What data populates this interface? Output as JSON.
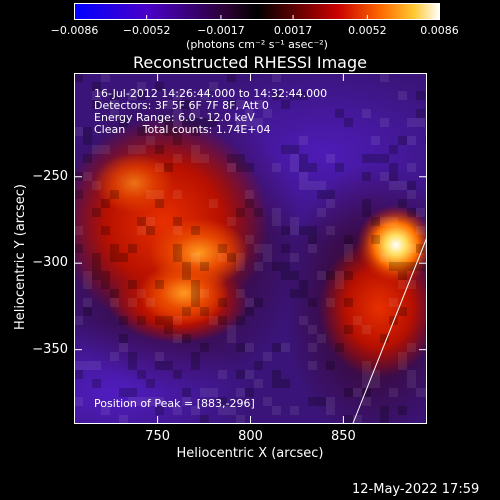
{
  "colorbar": {
    "ticks": [
      "−0.0086",
      "−0.0052",
      "−0.0017",
      "0.0017",
      "0.0052",
      "0.0086"
    ],
    "tick_values": [
      -0.0086,
      -0.0052,
      -0.0017,
      0.0017,
      0.0052,
      0.0086
    ],
    "unit_label": "(photons cm⁻² s⁻¹ asec⁻²)",
    "colors": [
      "#0000ff",
      "#4a00c8",
      "#2a0030",
      "#000000",
      "#5a0000",
      "#c80000",
      "#ff6a00",
      "#ffc832",
      "#ffffff"
    ]
  },
  "chart_data": {
    "type": "heatmap",
    "title": "Reconstructed RHESSI Image",
    "xlabel": "Heliocentric X (arcsec)",
    "ylabel": "Heliocentric Y (arcsec)",
    "xlim": [
      705,
      895
    ],
    "ylim": [
      -393,
      -190
    ],
    "xticks": [
      750,
      800,
      850
    ],
    "xtick_labels": [
      "750",
      "800",
      "850"
    ],
    "yticks": [
      -250,
      -300,
      -350
    ],
    "ytick_labels": [
      "−250",
      "−300",
      "−350"
    ],
    "annotations": [
      "16-Jul-2012 14:26:44.000 to 14:32:44.000",
      "Detectors: 3F 5F 6F 7F 8F, Att 0",
      "Energy Range: 6.0 - 12.0 keV",
      "Clean     Total counts: 1.74E+04"
    ],
    "peak_label": "Position of Peak = [883,-296]",
    "peak": [
      883,
      -296
    ],
    "limb_line": [
      [
        855,
        -393
      ],
      [
        895,
        -285
      ]
    ]
  },
  "footer": {
    "timestamp": "12-May-2022 17:59"
  }
}
